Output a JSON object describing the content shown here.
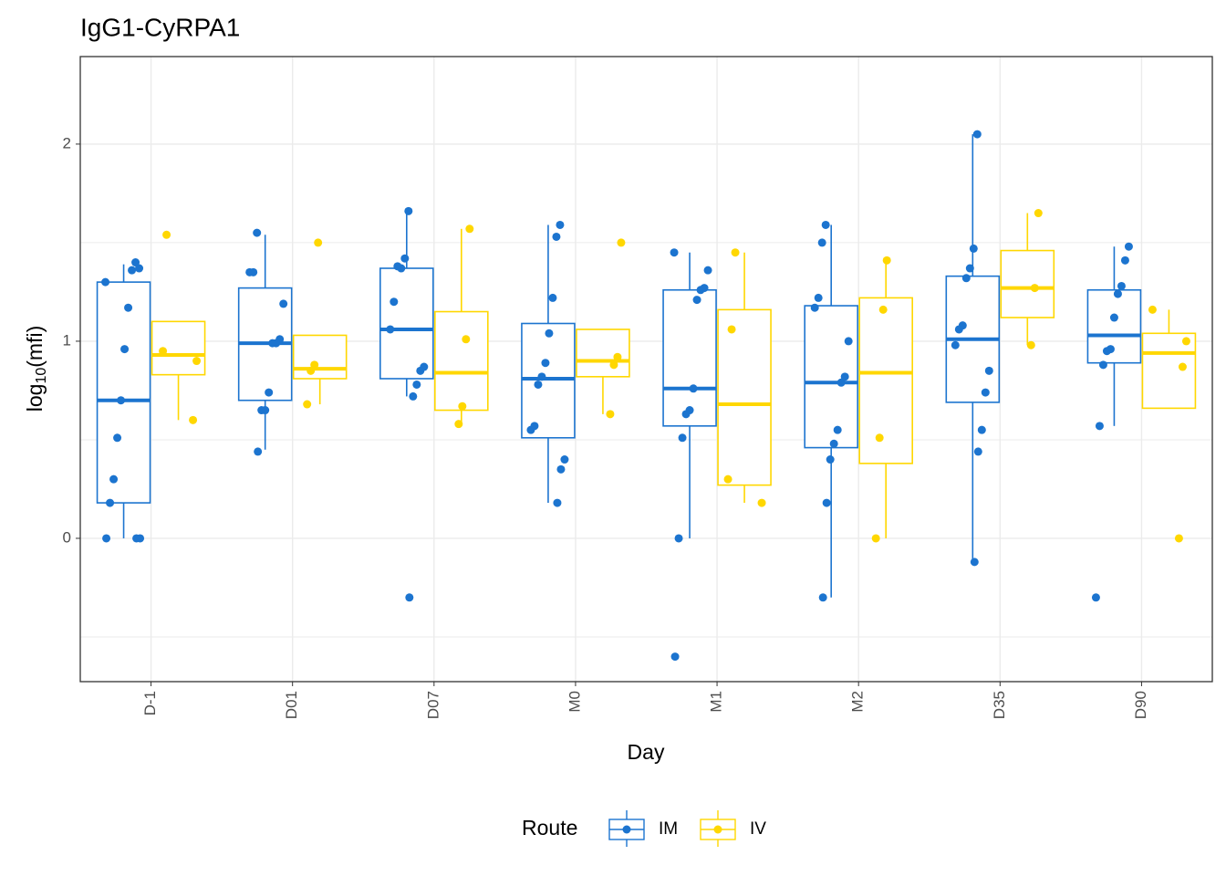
{
  "chart_data": {
    "type": "boxplot",
    "title": "IgG1-CyRPA1",
    "xlabel": "Day",
    "ylabel": {
      "base": "log",
      "sub": "10",
      "arg": "(mfi)"
    },
    "categories": [
      "D-1",
      "D01",
      "D07",
      "M0",
      "M1",
      "M2",
      "D35",
      "D90"
    ],
    "ylim": [
      -0.727,
      2.444
    ],
    "yticks": [
      0,
      1,
      2
    ],
    "minor_grid": [
      -0.5,
      0.5,
      1.5
    ],
    "grid": true,
    "legend_title": "Route",
    "legend_position": "bottom",
    "series": [
      {
        "name": "IM",
        "color": "#1c74cf",
        "boxes": [
          {
            "min": 0,
            "q1": 0.18,
            "median": 0.7,
            "q3": 1.3,
            "max": 1.39,
            "points": [
              1.3,
              1.37,
              1.4,
              1.36,
              1.17,
              0.96,
              0.7,
              0.51,
              0.3,
              0.18,
              0,
              0,
              0
            ]
          },
          {
            "min": 0.45,
            "q1": 0.7,
            "median": 0.99,
            "q3": 1.27,
            "max": 1.54,
            "points": [
              1.55,
              1.35,
              1.35,
              1.19,
              1.01,
              0.99,
              0.99,
              0.74,
              0.65,
              0.65,
              0.44
            ]
          },
          {
            "min": 0.72,
            "q1": 0.81,
            "median": 1.06,
            "q3": 1.37,
            "max": 1.66,
            "points": [
              1.66,
              1.42,
              1.37,
              1.38,
              1.2,
              1.06,
              0.87,
              0.85,
              0.78,
              0.72,
              -0.3
            ]
          },
          {
            "min": 0.18,
            "q1": 0.51,
            "median": 0.81,
            "q3": 1.09,
            "max": 1.59,
            "points": [
              1.59,
              1.53,
              1.22,
              1.04,
              0.89,
              0.82,
              0.78,
              0.57,
              0.55,
              0.4,
              0.35,
              0.18
            ]
          },
          {
            "min": 0,
            "q1": 0.57,
            "median": 0.76,
            "q3": 1.26,
            "max": 1.45,
            "points": [
              1.45,
              1.36,
              1.27,
              1.26,
              1.21,
              0.76,
              0.65,
              0.63,
              0.51,
              0,
              -0.6
            ]
          },
          {
            "min": -0.3,
            "q1": 0.46,
            "median": 0.79,
            "q3": 1.18,
            "max": 1.59,
            "points": [
              1.59,
              1.5,
              1.22,
              1.17,
              1.0,
              0.82,
              0.79,
              0.55,
              0.48,
              0.4,
              0.18,
              -0.3
            ]
          },
          {
            "min": -0.12,
            "q1": 0.69,
            "median": 1.01,
            "q3": 1.33,
            "max": 2.05,
            "points": [
              2.05,
              1.47,
              1.37,
              1.32,
              1.08,
              1.06,
              0.98,
              0.85,
              0.74,
              0.55,
              0.44,
              -0.12
            ]
          },
          {
            "min": 0.57,
            "q1": 0.89,
            "median": 1.03,
            "q3": 1.26,
            "max": 1.48,
            "points": [
              1.48,
              1.41,
              1.28,
              1.24,
              1.12,
              0.96,
              0.95,
              0.88,
              0.57,
              -0.3
            ]
          }
        ]
      },
      {
        "name": "IV",
        "color": "#ffd700",
        "boxes": [
          {
            "min": 0.6,
            "q1": 0.83,
            "median": 0.93,
            "q3": 1.1,
            "max": 1.1,
            "points": [
              1.54,
              0.95,
              0.9,
              0.6
            ]
          },
          {
            "min": 0.68,
            "q1": 0.81,
            "median": 0.86,
            "q3": 1.03,
            "max": 1.03,
            "points": [
              1.5,
              0.88,
              0.85,
              0.68
            ]
          },
          {
            "min": 0.58,
            "q1": 0.65,
            "median": 0.84,
            "q3": 1.15,
            "max": 1.57,
            "points": [
              1.57,
              1.01,
              0.67,
              0.58
            ]
          },
          {
            "min": 0.63,
            "q1": 0.82,
            "median": 0.9,
            "q3": 1.06,
            "max": 1.06,
            "points": [
              1.5,
              0.92,
              0.88,
              0.63
            ]
          },
          {
            "min": 0.18,
            "q1": 0.27,
            "median": 0.68,
            "q3": 1.16,
            "max": 1.45,
            "points": [
              1.45,
              1.06,
              0.3,
              0.18
            ]
          },
          {
            "min": 0,
            "q1": 0.38,
            "median": 0.84,
            "q3": 1.22,
            "max": 1.41,
            "points": [
              1.41,
              1.16,
              0.51,
              0
            ]
          },
          {
            "min": 0.98,
            "q1": 1.12,
            "median": 1.27,
            "q3": 1.46,
            "max": 1.65,
            "points": [
              1.65,
              1.27,
              0.98
            ]
          },
          {
            "min": 0.66,
            "q1": 0.66,
            "median": 0.94,
            "q3": 1.04,
            "max": 1.16,
            "points": [
              1.16,
              1.0,
              0.87,
              0
            ]
          }
        ]
      }
    ]
  }
}
